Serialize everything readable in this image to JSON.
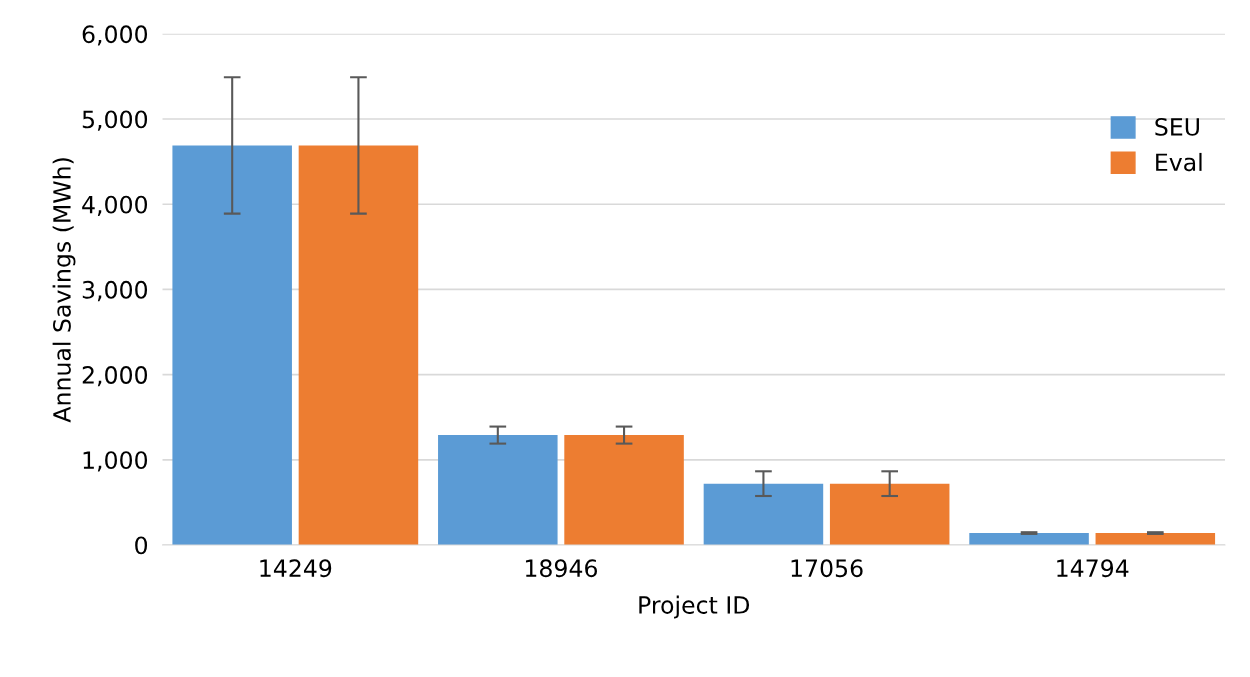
{
  "chart_data": {
    "type": "bar",
    "xlabel": "Project ID",
    "ylabel": "Annual Savings (MWh)",
    "categories": [
      "14249",
      "18946",
      "17056",
      "14794"
    ],
    "series": [
      {
        "name": "SEU",
        "color": "#5b9bd5",
        "values": [
          4690,
          1290,
          720,
          140
        ],
        "errors": [
          800,
          100,
          145,
          10
        ]
      },
      {
        "name": "Eval",
        "color": "#ed7d31",
        "values": [
          4690,
          1290,
          720,
          140
        ],
        "errors": [
          800,
          100,
          145,
          10
        ]
      }
    ],
    "ylim": [
      0,
      6000
    ],
    "yticks": [
      {
        "value": 0,
        "label": "0"
      },
      {
        "value": 1000,
        "label": "1,000"
      },
      {
        "value": 2000,
        "label": "2,000"
      },
      {
        "value": 3000,
        "label": "3,000"
      },
      {
        "value": 4000,
        "label": "4,000"
      },
      {
        "value": 5000,
        "label": "5,000"
      },
      {
        "value": 6000,
        "label": "6,000"
      }
    ],
    "grid": "y",
    "legend": "right"
  }
}
